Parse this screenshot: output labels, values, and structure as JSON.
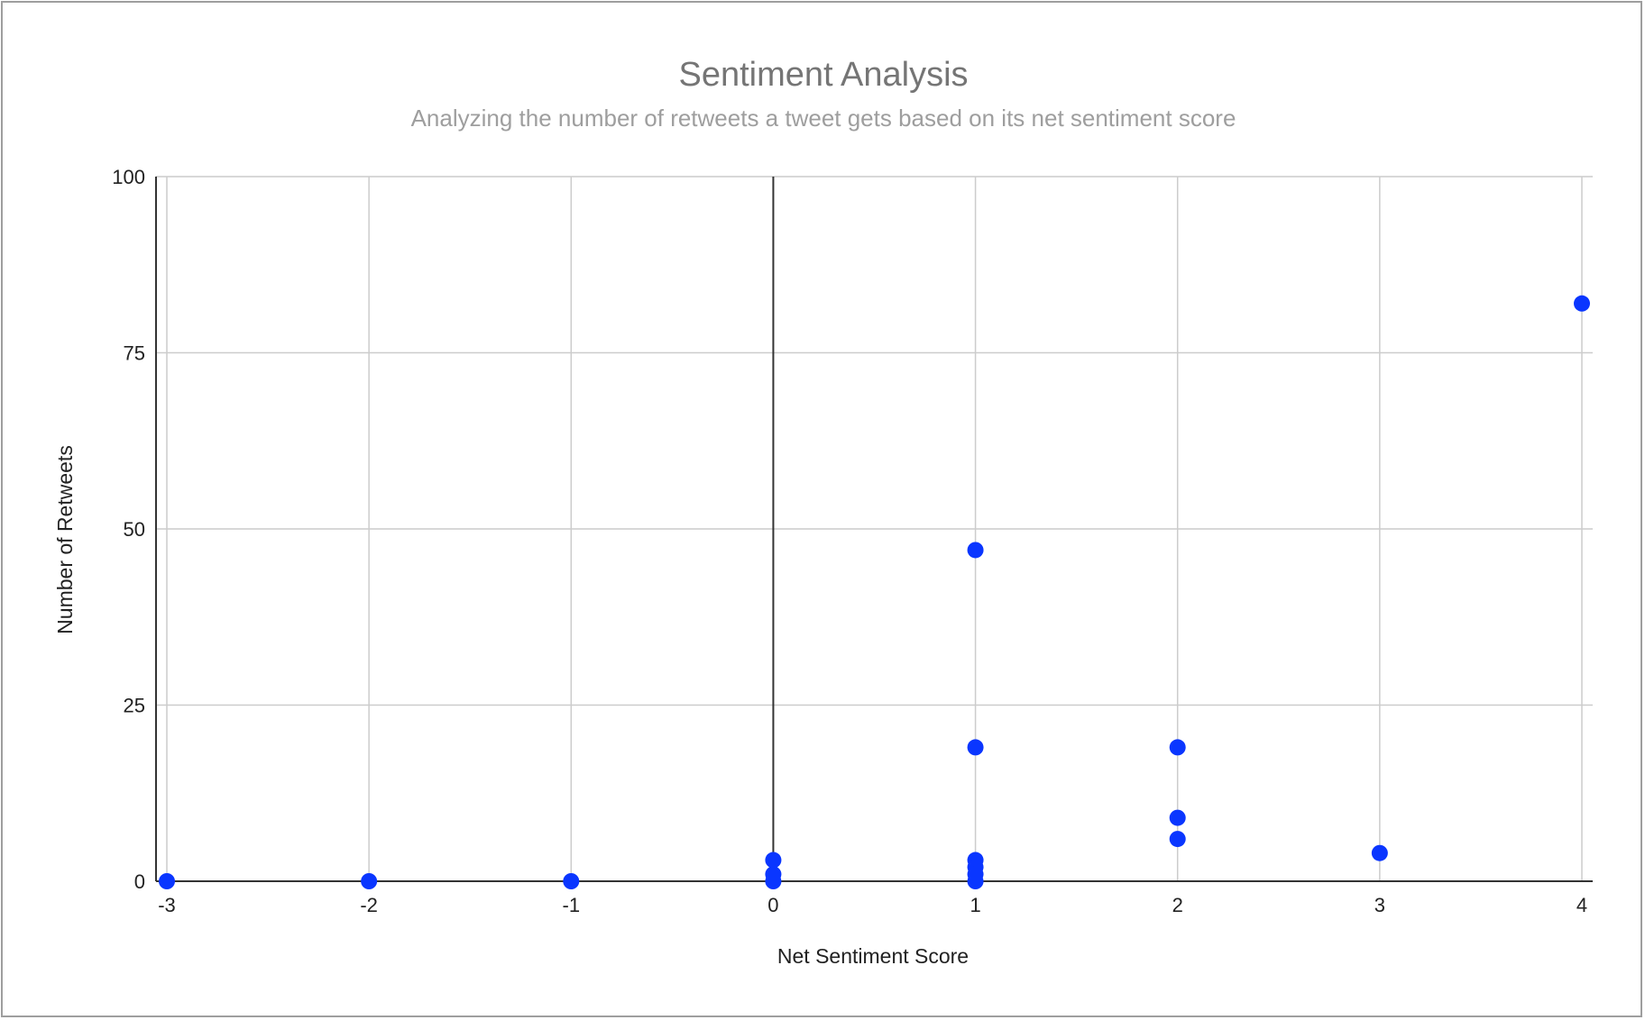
{
  "chart_data": {
    "type": "scatter",
    "title": "Sentiment Analysis",
    "subtitle": "Analyzing the number of retweets a tweet gets based on its net sentiment score",
    "xlabel": "Net Sentiment Score",
    "ylabel": "Number of Retweets",
    "xlim": [
      -3,
      4
    ],
    "ylim": [
      0,
      100
    ],
    "xticks": [
      "-3",
      "-2",
      "-1",
      "0",
      "1",
      "2",
      "3",
      "4"
    ],
    "yticks": [
      "0",
      "25",
      "50",
      "75",
      "100"
    ],
    "grid": true,
    "point_color": "#0a36ff",
    "points": [
      {
        "x": -3,
        "y": 0
      },
      {
        "x": -2,
        "y": 0
      },
      {
        "x": -1,
        "y": 0
      },
      {
        "x": 0,
        "y": 3
      },
      {
        "x": 0,
        "y": 1
      },
      {
        "x": 0,
        "y": 0
      },
      {
        "x": 1,
        "y": 47
      },
      {
        "x": 1,
        "y": 19
      },
      {
        "x": 1,
        "y": 3
      },
      {
        "x": 1,
        "y": 2
      },
      {
        "x": 1,
        "y": 1
      },
      {
        "x": 1,
        "y": 0
      },
      {
        "x": 2,
        "y": 19
      },
      {
        "x": 2,
        "y": 9
      },
      {
        "x": 2,
        "y": 6
      },
      {
        "x": 3,
        "y": 4
      },
      {
        "x": 4,
        "y": 82
      }
    ]
  }
}
